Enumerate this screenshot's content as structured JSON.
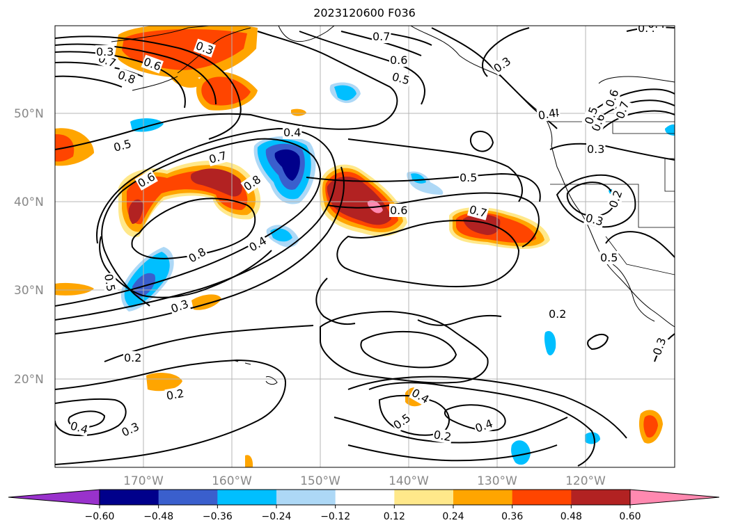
{
  "title": "2023120600 F036",
  "map": {
    "lat_labels": [
      {
        "text": "50°N",
        "lat": 50
      },
      {
        "text": "40°N",
        "lat": 40
      },
      {
        "text": "30°N",
        "lat": 30
      },
      {
        "text": "20°N",
        "lat": 20
      }
    ],
    "lon_labels": [
      {
        "text": "170°W",
        "lon": -170
      },
      {
        "text": "160°W",
        "lon": -160
      },
      {
        "text": "150°W",
        "lon": -150
      },
      {
        "text": "140°W",
        "lon": -140
      },
      {
        "text": "130°W",
        "lon": -130
      },
      {
        "text": "120°W",
        "lon": -120
      }
    ],
    "contour_labels": [
      "0.7",
      "0.8",
      "0.6",
      "0.3",
      "0.7",
      "0.6",
      "0.5",
      "0.3",
      "0.4",
      "0.5",
      "0.4",
      "0.7",
      "0.6",
      "0.8",
      "0.5",
      "0.6",
      "0.7",
      "0.4",
      "0.8",
      "0.3",
      "0.6",
      "0.5",
      "0.4",
      "0.3",
      "0.2",
      "0.5",
      "0.2",
      "0.2",
      "0.4",
      "0.3",
      "0.2",
      "0.4",
      "0.5",
      "0.2",
      "0.4",
      "0.3",
      "0.4",
      "0.3",
      "0.5",
      "0.6",
      "0.7",
      "0.3",
      "0.4"
    ]
  },
  "colorbar": {
    "ticks": [
      "−0.60",
      "−0.48",
      "−0.36",
      "−0.24",
      "−0.12",
      "0.12",
      "0.24",
      "0.36",
      "0.48",
      "0.60"
    ],
    "colors": [
      "#9932cc",
      "#00008b",
      "#3a5fcd",
      "#00bfff",
      "#add8f6",
      "#ffffff",
      "#ffe88a",
      "#ffa500",
      "#ff4500",
      "#b22222",
      "#ff89b0"
    ]
  }
}
